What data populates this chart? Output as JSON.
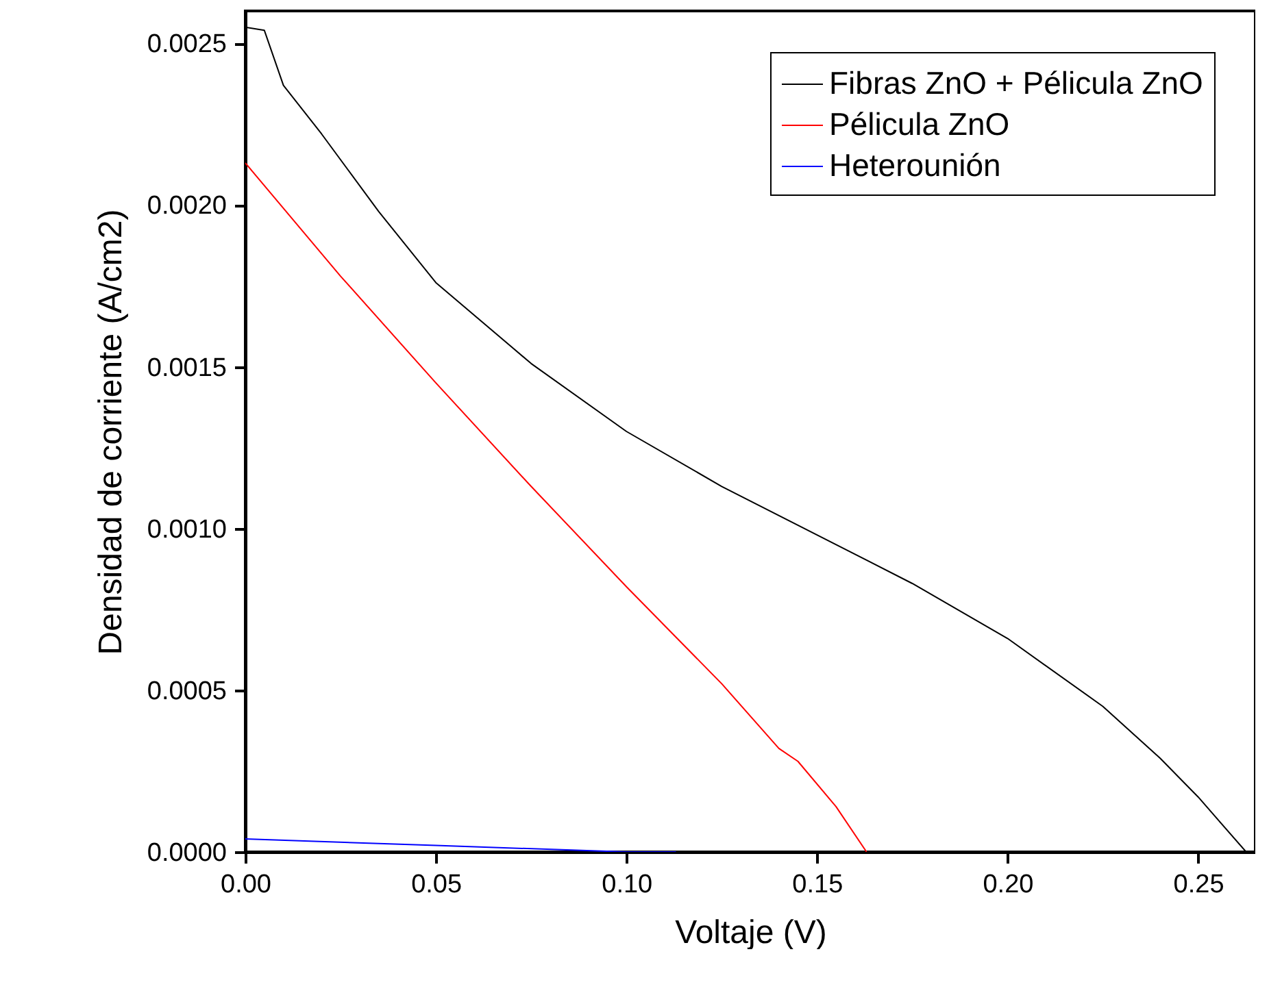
{
  "chart_data": {
    "type": "line",
    "xlabel": "Voltaje (V)",
    "ylabel": "Densidad de corriente (A/cm2)",
    "xlim": [
      0,
      0.265
    ],
    "ylim": [
      0,
      0.0026
    ],
    "xticks": [
      {
        "value": 0,
        "label": "0.00"
      },
      {
        "value": 0.05,
        "label": "0.05"
      },
      {
        "value": 0.1,
        "label": "0.10"
      },
      {
        "value": 0.15,
        "label": "0.15"
      },
      {
        "value": 0.2,
        "label": "0.20"
      },
      {
        "value": 0.25,
        "label": "0.25"
      }
    ],
    "yticks": [
      {
        "value": 0,
        "label": "0.0000"
      },
      {
        "value": 0.0005,
        "label": "0.0005"
      },
      {
        "value": 0.001,
        "label": "0.0010"
      },
      {
        "value": 0.0015,
        "label": "0.0015"
      },
      {
        "value": 0.002,
        "label": "0.0020"
      },
      {
        "value": 0.0025,
        "label": "0.0025"
      }
    ],
    "grid": false,
    "legend": "top right",
    "line_style": "solid",
    "marker": "none",
    "series": [
      {
        "name": "Fibras ZnO + Pélicula ZnO",
        "color": "#000000",
        "x": [
          0,
          0.005,
          0.01,
          0.02,
          0.035,
          0.05,
          0.075,
          0.1,
          0.125,
          0.15,
          0.175,
          0.2,
          0.225,
          0.24,
          0.25,
          0.2626
        ],
        "values": [
          0.00255,
          0.00254,
          0.00237,
          0.00222,
          0.00198,
          0.00176,
          0.00151,
          0.0013,
          0.00113,
          0.00098,
          0.00083,
          0.00066,
          0.00045,
          0.00029,
          0.00017,
          0
        ]
      },
      {
        "name": "Pélicula ZnO",
        "color": "#ff0000",
        "x": [
          0,
          0.025,
          0.05,
          0.075,
          0.1,
          0.125,
          0.14,
          0.145,
          0.155,
          0.163
        ],
        "values": [
          0.00213,
          0.00178,
          0.00145,
          0.00113,
          0.00082,
          0.00052,
          0.00032,
          0.00028,
          0.00014,
          0
        ]
      },
      {
        "name": "Heterounión",
        "color": "#0000ff",
        "x": [
          0,
          0.05,
          0.1,
          0.113
        ],
        "values": [
          4e-05,
          2e-05,
          0,
          0
        ]
      }
    ]
  }
}
